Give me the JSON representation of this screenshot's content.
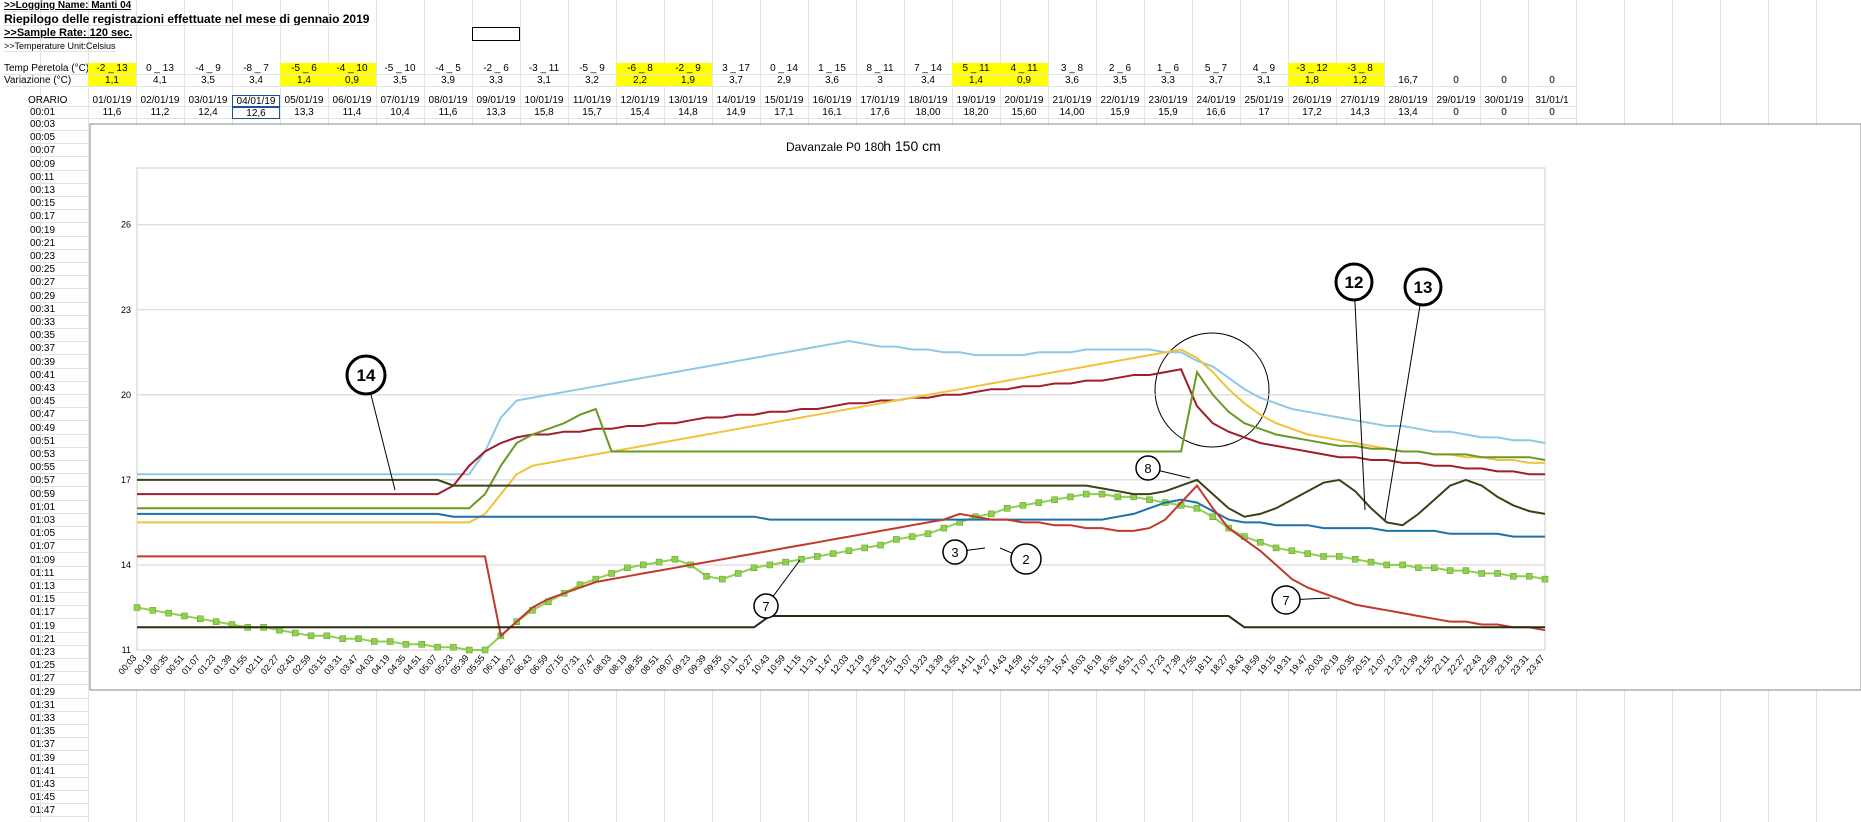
{
  "sheet": {
    "logging_name": ">>Logging Name: Manti 04",
    "heading": "Riepilogo delle registrazioni effettuate nel mese di gennaio 2019",
    "sample_rate": ">>Sample Rate: 120 sec.",
    "unit": ">>Temperature Unit:Celsius",
    "temp_label": "Temp Peretola (°C)",
    "temp": [
      "-2 _ 13",
      "0 _ 13",
      "-4 _ 9",
      "-8 _ 7",
      "-5 _ 6",
      "-4 _ 10",
      "-5 _ 10",
      "-4 _ 5",
      "-2 _ 6",
      "-3 _ 11",
      "-5 _ 9",
      "-6 _ 8",
      "-2 _ 9",
      "3 _ 17",
      "0 _ 14",
      "1 _ 15",
      "8 _ 11",
      "7 _ 14",
      "5 _ 11",
      "4 _ 11",
      "3 _ 8",
      "2 _ 6",
      "1 _ 6",
      "5 _ 7",
      "4 _ 9",
      "-3 _ 12",
      "-3 _ 8"
    ],
    "var_label": "Variazione (°C)",
    "var": [
      "1,1",
      "4,1",
      "3,5",
      "3,4",
      "1,4",
      "0,9",
      "3,5",
      "3,9",
      "3,3",
      "3,1",
      "3,2",
      "2,2",
      "1,9",
      "3,7",
      "2,9",
      "3,6",
      "3",
      "3,4",
      "1,4",
      "0,9",
      "3,6",
      "3,5",
      "3,3",
      "3,7",
      "3,1",
      "1,8",
      "1,2",
      "16,7",
      "0",
      "0",
      "0"
    ],
    "highlight": [
      0,
      4,
      5,
      11,
      12,
      18,
      19,
      25,
      26
    ],
    "highlight_color": "#ffff00",
    "time_label": "ORARIO",
    "dates": [
      "01/01/19",
      "02/01/19",
      "03/01/19",
      "04/01/19",
      "05/01/19",
      "06/01/19",
      "07/01/19",
      "08/01/19",
      "09/01/19",
      "10/01/19",
      "11/01/19",
      "12/01/19",
      "13/01/19",
      "14/01/19",
      "15/01/19",
      "16/01/19",
      "17/01/19",
      "18/01/19",
      "19/01/19",
      "20/01/19",
      "21/01/19",
      "22/01/19",
      "23/01/19",
      "24/01/19",
      "25/01/19",
      "26/01/19",
      "27/01/19",
      "28/01/19",
      "29/01/19",
      "30/01/19",
      "31/01/1"
    ],
    "first_time": "00:01",
    "first_row": [
      "11,6",
      "11,2",
      "12,4",
      "12,6",
      "13,3",
      "11,4",
      "10,4",
      "11,6",
      "13,3",
      "15,8",
      "15,7",
      "15,4",
      "14,8",
      "14,9",
      "17,1",
      "16,1",
      "17,6",
      "18,00",
      "18,20",
      "15,60",
      "14,00",
      "15,9",
      "15,9",
      "16,6",
      "17",
      "17,2",
      "14,3",
      "13,4",
      "0",
      "0",
      "0"
    ],
    "times": [
      "00:03",
      "00:05",
      "00:07",
      "00:09",
      "00:11",
      "00:13",
      "00:15",
      "00:17",
      "00:19",
      "00:21",
      "00:23",
      "00:25",
      "00:27",
      "00:29",
      "00:31",
      "00:33",
      "00:35",
      "00:37",
      "00:39",
      "00:41",
      "00:43",
      "00:45",
      "00:47",
      "00:49",
      "00:51",
      "00:53",
      "00:55",
      "00:57",
      "00:59",
      "01:01",
      "01:03",
      "01:05",
      "01:07",
      "01:09",
      "01:11",
      "01:13",
      "01:15",
      "01:17",
      "01:19",
      "01:21",
      "01:23",
      "01:25",
      "01:27",
      "01:29",
      "01:31",
      "01:33",
      "01:35",
      "01:37",
      "01:39",
      "01:41",
      "01:43",
      "01:45",
      "01:47"
    ]
  },
  "chart_data": {
    "type": "line",
    "title": "Davanzale P0 180",
    "subtitle": "h 150 cm",
    "categories": [
      "00:03",
      "00:19",
      "00:35",
      "00:51",
      "01:07",
      "01:23",
      "01:39",
      "01:55",
      "02:11",
      "02:27",
      "02:43",
      "02:59",
      "03:15",
      "03:31",
      "03:47",
      "04:03",
      "04:19",
      "04:35",
      "04:51",
      "05:07",
      "05:23",
      "05:39",
      "05:55",
      "06:11",
      "06:27",
      "06:43",
      "06:59",
      "07:15",
      "07:31",
      "07:47",
      "08:03",
      "08:19",
      "08:35",
      "08:51",
      "09:07",
      "09:23",
      "09:39",
      "09:55",
      "10:11",
      "10:27",
      "10:43",
      "10:59",
      "11:15",
      "11:31",
      "11:47",
      "12:03",
      "12:19",
      "12:35",
      "12:51",
      "13:07",
      "13:23",
      "13:39",
      "13:55",
      "14:11",
      "14:27",
      "14:43",
      "14:59",
      "15:15",
      "15:31",
      "15:47",
      "16:03",
      "16:19",
      "16:35",
      "16:51",
      "17:07",
      "17:23",
      "17:39",
      "17:55",
      "18:11",
      "18:27",
      "18:43",
      "18:59",
      "19:15",
      "19:31",
      "19:47",
      "20:03",
      "20:19",
      "20:35",
      "20:51",
      "21:07",
      "21:23",
      "21:39",
      "21:55",
      "22:11",
      "22:27",
      "22:43",
      "22:59",
      "23:15",
      "23:31",
      "23:47"
    ],
    "ylim": [
      11,
      28
    ],
    "yticks": [
      11,
      14,
      17,
      20,
      23,
      26
    ],
    "grid": true,
    "annotations": [
      "14",
      "12",
      "13",
      "8",
      "3",
      "2",
      "7",
      "7"
    ],
    "series": [
      {
        "color": "#8ec8e8",
        "values": [
          17.2,
          17.2,
          17.2,
          17.2,
          17.2,
          17.2,
          17.2,
          17.2,
          17.2,
          17.2,
          17.2,
          17.2,
          17.2,
          17.2,
          17.2,
          17.2,
          17.2,
          17.2,
          17.2,
          17.2,
          17.2,
          17.2,
          18.0,
          19.2,
          19.8,
          19.9,
          20.0,
          20.1,
          20.2,
          20.3,
          20.4,
          20.5,
          20.6,
          20.7,
          20.8,
          20.9,
          21.0,
          21.1,
          21.2,
          21.3,
          21.4,
          21.5,
          21.6,
          21.7,
          21.8,
          21.9,
          21.8,
          21.7,
          21.7,
          21.6,
          21.6,
          21.5,
          21.5,
          21.4,
          21.4,
          21.4,
          21.4,
          21.5,
          21.5,
          21.5,
          21.6,
          21.6,
          21.6,
          21.6,
          21.6,
          21.5,
          21.5,
          21.2,
          21.0,
          20.6,
          20.2,
          19.9,
          19.7,
          19.5,
          19.4,
          19.3,
          19.2,
          19.1,
          19.0,
          18.9,
          18.9,
          18.8,
          18.7,
          18.7,
          18.6,
          18.5,
          18.5,
          18.4,
          18.4,
          18.3
        ]
      },
      {
        "color": "#a01e2a",
        "values": [
          16.5,
          16.5,
          16.5,
          16.5,
          16.5,
          16.5,
          16.5,
          16.5,
          16.5,
          16.5,
          16.5,
          16.5,
          16.5,
          16.5,
          16.5,
          16.5,
          16.5,
          16.5,
          16.5,
          16.5,
          16.8,
          17.5,
          18.0,
          18.3,
          18.5,
          18.6,
          18.6,
          18.7,
          18.7,
          18.8,
          18.8,
          18.9,
          18.9,
          19.0,
          19.0,
          19.1,
          19.2,
          19.2,
          19.3,
          19.3,
          19.4,
          19.4,
          19.5,
          19.5,
          19.6,
          19.7,
          19.7,
          19.8,
          19.8,
          19.9,
          19.9,
          20.0,
          20.0,
          20.1,
          20.2,
          20.2,
          20.3,
          20.3,
          20.4,
          20.4,
          20.5,
          20.5,
          20.6,
          20.7,
          20.7,
          20.8,
          20.9,
          19.6,
          19.0,
          18.7,
          18.5,
          18.3,
          18.2,
          18.1,
          18.0,
          17.9,
          17.8,
          17.8,
          17.7,
          17.7,
          17.6,
          17.6,
          17.5,
          17.5,
          17.4,
          17.4,
          17.3,
          17.3,
          17.2,
          17.2
        ]
      },
      {
        "color": "#f2c23a",
        "values": [
          15.5,
          15.5,
          15.5,
          15.5,
          15.5,
          15.5,
          15.5,
          15.5,
          15.5,
          15.5,
          15.5,
          15.5,
          15.5,
          15.5,
          15.5,
          15.5,
          15.5,
          15.5,
          15.5,
          15.5,
          15.5,
          15.5,
          15.8,
          16.5,
          17.2,
          17.5,
          17.6,
          17.7,
          17.8,
          17.9,
          18.0,
          18.1,
          18.2,
          18.3,
          18.4,
          18.5,
          18.6,
          18.7,
          18.8,
          18.9,
          19.0,
          19.1,
          19.2,
          19.3,
          19.4,
          19.5,
          19.6,
          19.7,
          19.8,
          19.9,
          20.0,
          20.1,
          20.2,
          20.3,
          20.4,
          20.5,
          20.6,
          20.7,
          20.8,
          20.9,
          21.0,
          21.1,
          21.2,
          21.3,
          21.4,
          21.5,
          21.6,
          21.3,
          20.8,
          20.2,
          19.7,
          19.3,
          19.0,
          18.8,
          18.6,
          18.5,
          18.4,
          18.3,
          18.2,
          18.1,
          18.0,
          18.0,
          17.9,
          17.9,
          17.8,
          17.8,
          17.7,
          17.7,
          17.6,
          17.6
        ]
      },
      {
        "color": "#6b9a23",
        "values": [
          16.0,
          16.0,
          16.0,
          16.0,
          16.0,
          16.0,
          16.0,
          16.0,
          16.0,
          16.0,
          16.0,
          16.0,
          16.0,
          16.0,
          16.0,
          16.0,
          16.0,
          16.0,
          16.0,
          16.0,
          16.0,
          16.0,
          16.5,
          17.5,
          18.3,
          18.6,
          18.8,
          19.0,
          19.3,
          19.5,
          18.0,
          18.0,
          18.0,
          18.0,
          18.0,
          18.0,
          18.0,
          18.0,
          18.0,
          18.0,
          18.0,
          18.0,
          18.0,
          18.0,
          18.0,
          18.0,
          18.0,
          18.0,
          18.0,
          18.0,
          18.0,
          18.0,
          18.0,
          18.0,
          18.0,
          18.0,
          18.0,
          18.0,
          18.0,
          18.0,
          18.0,
          18.0,
          18.0,
          18.0,
          18.0,
          18.0,
          18.0,
          20.8,
          20.0,
          19.4,
          19.0,
          18.8,
          18.6,
          18.5,
          18.4,
          18.3,
          18.2,
          18.2,
          18.1,
          18.1,
          18.0,
          18.0,
          17.9,
          17.9,
          17.9,
          17.8,
          17.8,
          17.8,
          17.8,
          17.7
        ]
      },
      {
        "color": "#8fd14f",
        "marker": "square",
        "values": [
          12.5,
          12.4,
          12.3,
          12.2,
          12.1,
          12.0,
          11.9,
          11.8,
          11.8,
          11.7,
          11.6,
          11.5,
          11.5,
          11.4,
          11.4,
          11.3,
          11.3,
          11.2,
          11.2,
          11.1,
          11.1,
          11.0,
          11.0,
          11.5,
          12.0,
          12.4,
          12.7,
          13.0,
          13.3,
          13.5,
          13.7,
          13.9,
          14.0,
          14.1,
          14.2,
          14.0,
          13.6,
          13.5,
          13.7,
          13.9,
          14.0,
          14.1,
          14.2,
          14.3,
          14.4,
          14.5,
          14.6,
          14.7,
          14.9,
          15.0,
          15.1,
          15.3,
          15.5,
          15.7,
          15.8,
          16.0,
          16.1,
          16.2,
          16.3,
          16.4,
          16.5,
          16.5,
          16.4,
          16.4,
          16.3,
          16.2,
          16.1,
          16.0,
          15.7,
          15.3,
          15.0,
          14.8,
          14.6,
          14.5,
          14.4,
          14.3,
          14.3,
          14.2,
          14.1,
          14.0,
          14.0,
          13.9,
          13.9,
          13.8,
          13.8,
          13.7,
          13.7,
          13.6,
          13.6,
          13.5
        ]
      },
      {
        "color": "#3b4214",
        "values": [
          17.0,
          17.0,
          17.0,
          17.0,
          17.0,
          17.0,
          17.0,
          17.0,
          17.0,
          17.0,
          17.0,
          17.0,
          17.0,
          17.0,
          17.0,
          17.0,
          17.0,
          17.0,
          17.0,
          17.0,
          16.8,
          16.8,
          16.8,
          16.8,
          16.8,
          16.8,
          16.8,
          16.8,
          16.8,
          16.8,
          16.8,
          16.8,
          16.8,
          16.8,
          16.8,
          16.8,
          16.8,
          16.8,
          16.8,
          16.8,
          16.8,
          16.8,
          16.8,
          16.8,
          16.8,
          16.8,
          16.8,
          16.8,
          16.8,
          16.8,
          16.8,
          16.8,
          16.8,
          16.8,
          16.8,
          16.8,
          16.8,
          16.8,
          16.8,
          16.8,
          16.8,
          16.7,
          16.6,
          16.5,
          16.5,
          16.6,
          16.8,
          17.0,
          16.5,
          16.0,
          15.7,
          15.8,
          16.0,
          16.3,
          16.6,
          16.9,
          17.0,
          16.6,
          16.0,
          15.5,
          15.4,
          15.8,
          16.3,
          16.8,
          17.0,
          16.8,
          16.4,
          16.1,
          15.9,
          15.8
        ]
      },
      {
        "color": "#1f6fa8",
        "values": [
          15.8,
          15.8,
          15.8,
          15.8,
          15.8,
          15.8,
          15.8,
          15.8,
          15.8,
          15.8,
          15.8,
          15.8,
          15.8,
          15.8,
          15.8,
          15.8,
          15.8,
          15.8,
          15.8,
          15.8,
          15.7,
          15.7,
          15.7,
          15.7,
          15.7,
          15.7,
          15.7,
          15.7,
          15.7,
          15.7,
          15.7,
          15.7,
          15.7,
          15.7,
          15.7,
          15.7,
          15.7,
          15.7,
          15.7,
          15.7,
          15.6,
          15.6,
          15.6,
          15.6,
          15.6,
          15.6,
          15.6,
          15.6,
          15.6,
          15.6,
          15.6,
          15.6,
          15.6,
          15.6,
          15.6,
          15.6,
          15.6,
          15.6,
          15.6,
          15.6,
          15.6,
          15.6,
          15.7,
          15.8,
          16.0,
          16.2,
          16.3,
          16.2,
          15.9,
          15.6,
          15.5,
          15.5,
          15.4,
          15.4,
          15.4,
          15.3,
          15.3,
          15.3,
          15.3,
          15.2,
          15.2,
          15.2,
          15.2,
          15.1,
          15.1,
          15.1,
          15.1,
          15.0,
          15.0,
          15.0
        ]
      },
      {
        "color": "#c0392b",
        "values": [
          14.3,
          14.3,
          14.3,
          14.3,
          14.3,
          14.3,
          14.3,
          14.3,
          14.3,
          14.3,
          14.3,
          14.3,
          14.3,
          14.3,
          14.3,
          14.3,
          14.3,
          14.3,
          14.3,
          14.3,
          14.3,
          14.3,
          14.3,
          11.5,
          12.0,
          12.5,
          12.8,
          13.0,
          13.2,
          13.4,
          13.5,
          13.6,
          13.7,
          13.8,
          13.9,
          14.0,
          14.1,
          14.2,
          14.3,
          14.4,
          14.5,
          14.6,
          14.7,
          14.8,
          14.9,
          15.0,
          15.1,
          15.2,
          15.3,
          15.4,
          15.5,
          15.6,
          15.8,
          15.7,
          15.6,
          15.6,
          15.5,
          15.5,
          15.4,
          15.4,
          15.3,
          15.3,
          15.2,
          15.2,
          15.3,
          15.6,
          16.2,
          16.8,
          16.0,
          15.3,
          14.9,
          14.5,
          14.0,
          13.5,
          13.2,
          13.0,
          12.8,
          12.6,
          12.5,
          12.4,
          12.3,
          12.2,
          12.1,
          12.0,
          12.0,
          11.9,
          11.9,
          11.8,
          11.8,
          11.7
        ]
      },
      {
        "color": "#2b2b10",
        "values": [
          11.8,
          11.8,
          11.8,
          11.8,
          11.8,
          11.8,
          11.8,
          11.8,
          11.8,
          11.8,
          11.8,
          11.8,
          11.8,
          11.8,
          11.8,
          11.8,
          11.8,
          11.8,
          11.8,
          11.8,
          11.8,
          11.8,
          11.8,
          11.8,
          11.8,
          11.8,
          11.8,
          11.8,
          11.8,
          11.8,
          11.8,
          11.8,
          11.8,
          11.8,
          11.8,
          11.8,
          11.8,
          11.8,
          11.8,
          11.8,
          12.2,
          12.2,
          12.2,
          12.2,
          12.2,
          12.2,
          12.2,
          12.2,
          12.2,
          12.2,
          12.2,
          12.2,
          12.2,
          12.2,
          12.2,
          12.2,
          12.2,
          12.2,
          12.2,
          12.2,
          12.2,
          12.2,
          12.2,
          12.2,
          12.2,
          12.2,
          12.2,
          12.2,
          12.2,
          12.2,
          11.8,
          11.8,
          11.8,
          11.8,
          11.8,
          11.8,
          11.8,
          11.8,
          11.8,
          11.8,
          11.8,
          11.8,
          11.8,
          11.8,
          11.8,
          11.8,
          11.8,
          11.8,
          11.8,
          11.8
        ]
      }
    ]
  }
}
